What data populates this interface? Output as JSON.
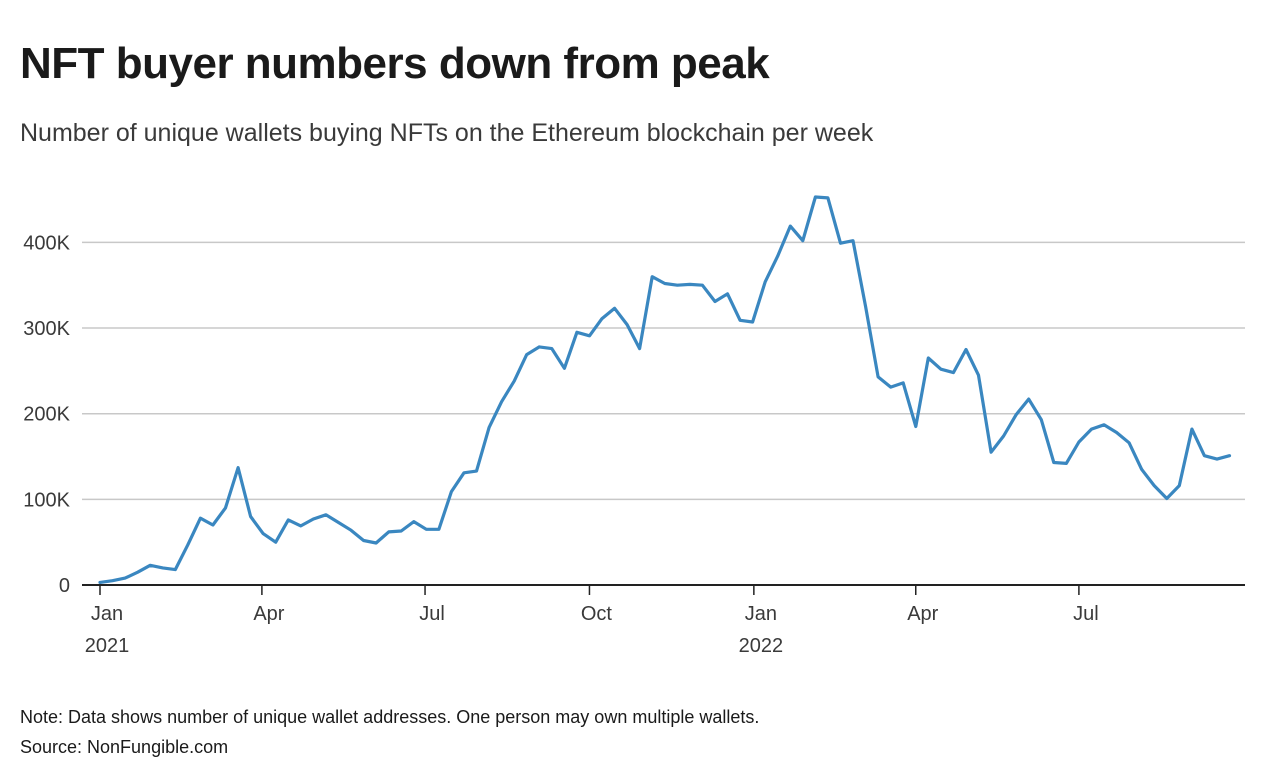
{
  "header": {
    "title": "NFT buyer numbers down from peak",
    "subtitle": "Number of unique wallets buying NFTs on the Ethereum blockchain per week"
  },
  "footer": {
    "note": "Note: Data shows number of unique wallet addresses. One person may own multiple wallets.",
    "source": "Source: NonFungible.com"
  },
  "colors": {
    "line": "#3a87c0",
    "grid": "#c8c8c8",
    "axis": "#222222"
  },
  "chart_data": {
    "type": "line",
    "title": "NFT buyer numbers down from peak",
    "subtitle": "Number of unique wallets buying NFTs on the Ethereum blockchain per week",
    "xlabel": "",
    "ylabel": "",
    "x_unit": "weeks since 2021-01-01",
    "ylim": [
      0,
      460000
    ],
    "grid": true,
    "y_ticks": [
      {
        "value": 0,
        "label": "0"
      },
      {
        "value": 100000,
        "label": "100K"
      },
      {
        "value": 200000,
        "label": "200K"
      },
      {
        "value": 300000,
        "label": "300K"
      },
      {
        "value": 400000,
        "label": "400K"
      }
    ],
    "x_ticks": [
      {
        "week": 0,
        "label": "Jan",
        "year": "2021"
      },
      {
        "week": 12.9,
        "label": "Apr",
        "year": ""
      },
      {
        "week": 25.9,
        "label": "Jul",
        "year": ""
      },
      {
        "week": 39,
        "label": "Oct",
        "year": ""
      },
      {
        "week": 52.1,
        "label": "Jan",
        "year": "2022"
      },
      {
        "week": 65,
        "label": "Apr",
        "year": ""
      },
      {
        "week": 78,
        "label": "Jul",
        "year": ""
      }
    ],
    "series": [
      {
        "name": "Unique wallets buying NFTs",
        "values": [
          3000,
          5000,
          8000,
          15000,
          23000,
          20000,
          18000,
          47000,
          78000,
          70000,
          90000,
          137000,
          80000,
          60000,
          50000,
          76000,
          69000,
          77000,
          82000,
          73000,
          64000,
          52000,
          49000,
          62000,
          63000,
          74000,
          65000,
          65000,
          109000,
          131000,
          133000,
          184000,
          214000,
          238000,
          269000,
          278000,
          276000,
          253000,
          295000,
          291000,
          311000,
          323000,
          304000,
          276000,
          360000,
          352000,
          350000,
          351000,
          350000,
          331000,
          340000,
          309000,
          307000,
          354000,
          384000,
          419000,
          402000,
          453000,
          452000,
          399000,
          402000,
          325000,
          243000,
          231000,
          236000,
          185000,
          265000,
          252000,
          248000,
          275000,
          245000,
          155000,
          174000,
          199000,
          217000,
          193000,
          143000,
          142000,
          167000,
          182000,
          187000,
          178000,
          166000,
          135000,
          116000,
          101000,
          116000,
          182000,
          151000,
          147000,
          151000
        ]
      }
    ]
  }
}
